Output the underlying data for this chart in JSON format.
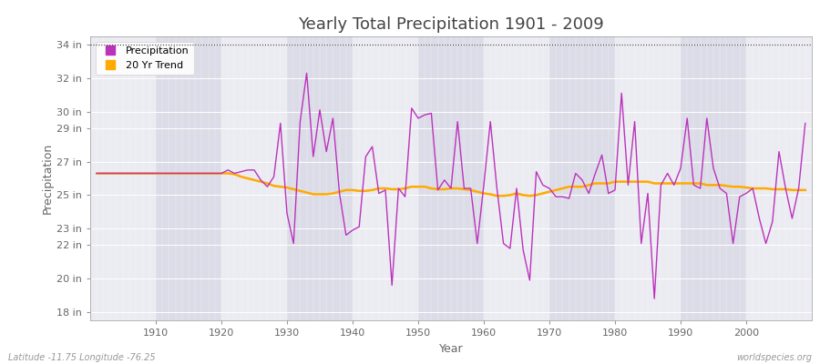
{
  "title": "Yearly Total Precipitation 1901 - 2009",
  "xlabel": "Year",
  "ylabel": "Precipitation",
  "x_start": 1901,
  "x_end": 2009,
  "ytick_labels": [
    "18 in",
    "20 in",
    "22 in",
    "23 in",
    "25 in",
    "27 in",
    "29 in",
    "30 in",
    "32 in",
    "34 in"
  ],
  "ytick_values": [
    18,
    20,
    22,
    23,
    25,
    27,
    29,
    30,
    32,
    34
  ],
  "ylim": [
    17.5,
    34.5
  ],
  "xlim": [
    1900,
    2010
  ],
  "fig_bg_color": "#ffffff",
  "plot_bg_color": "#dcdce8",
  "grid_color": "#ffffff",
  "precip_color": "#bb33bb",
  "trend_color": "#ffaa00",
  "title_color": "#444444",
  "axis_label_color": "#666666",
  "tick_label_color": "#666666",
  "footer_left": "Latitude -11.75 Longitude -76.25",
  "footer_right": "worldspecies.org",
  "legend_labels": [
    "Precipitation",
    "20 Yr Trend"
  ],
  "xtick_vals": [
    1910,
    1920,
    1930,
    1940,
    1950,
    1960,
    1970,
    1980,
    1990,
    2000
  ],
  "precipitation": [
    26.3,
    26.3,
    26.3,
    26.3,
    26.3,
    26.3,
    26.3,
    26.3,
    26.3,
    26.3,
    26.3,
    26.3,
    26.3,
    26.3,
    26.3,
    26.3,
    26.3,
    26.3,
    26.3,
    26.3,
    26.5,
    26.3,
    26.4,
    26.5,
    26.5,
    25.9,
    25.5,
    26.1,
    29.3,
    23.9,
    22.1,
    29.4,
    32.3,
    27.3,
    30.1,
    27.6,
    29.6,
    25.1,
    22.6,
    22.9,
    23.1,
    27.3,
    27.9,
    25.1,
    25.3,
    19.6,
    25.4,
    24.9,
    30.2,
    29.6,
    29.8,
    29.9,
    25.3,
    25.9,
    25.4,
    29.4,
    25.4,
    25.4,
    22.1,
    25.6,
    29.4,
    25.4,
    22.1,
    21.8,
    25.4,
    21.7,
    19.9,
    26.4,
    25.6,
    25.4,
    24.9,
    24.9,
    24.8,
    26.3,
    25.9,
    25.1,
    26.3,
    27.4,
    25.1,
    25.3,
    31.1,
    25.6,
    29.4,
    22.1,
    25.1,
    18.8,
    25.6,
    26.3,
    25.6,
    26.6,
    29.6,
    25.6,
    25.4,
    29.6,
    26.6,
    25.4,
    25.1,
    22.1,
    24.9,
    25.1,
    25.4,
    23.6,
    22.1,
    23.4,
    27.6,
    25.4,
    23.6,
    25.4,
    29.3
  ],
  "trend": [
    26.3,
    26.3,
    26.3,
    26.3,
    26.3,
    26.3,
    26.3,
    26.3,
    26.3,
    26.3,
    26.3,
    26.3,
    26.3,
    26.3,
    26.3,
    26.3,
    26.3,
    26.3,
    26.3,
    26.3,
    26.3,
    26.25,
    26.1,
    26.0,
    25.9,
    25.8,
    25.7,
    25.55,
    25.5,
    25.45,
    25.35,
    25.25,
    25.15,
    25.05,
    25.05,
    25.05,
    25.1,
    25.2,
    25.3,
    25.3,
    25.25,
    25.25,
    25.3,
    25.4,
    25.4,
    25.35,
    25.35,
    25.4,
    25.5,
    25.5,
    25.5,
    25.4,
    25.35,
    25.35,
    25.4,
    25.4,
    25.35,
    25.3,
    25.2,
    25.1,
    25.05,
    24.95,
    24.95,
    25.0,
    25.1,
    25.0,
    24.95,
    25.0,
    25.1,
    25.2,
    25.3,
    25.4,
    25.5,
    25.5,
    25.5,
    25.6,
    25.7,
    25.7,
    25.7,
    25.8,
    25.8,
    25.8,
    25.8,
    25.8,
    25.8,
    25.7,
    25.7,
    25.7,
    25.7,
    25.7,
    25.7,
    25.7,
    25.7,
    25.6,
    25.6,
    25.6,
    25.55,
    25.5,
    25.5,
    25.45,
    25.4,
    25.4,
    25.4,
    25.35,
    25.35,
    25.35,
    25.3,
    25.3,
    25.3
  ]
}
